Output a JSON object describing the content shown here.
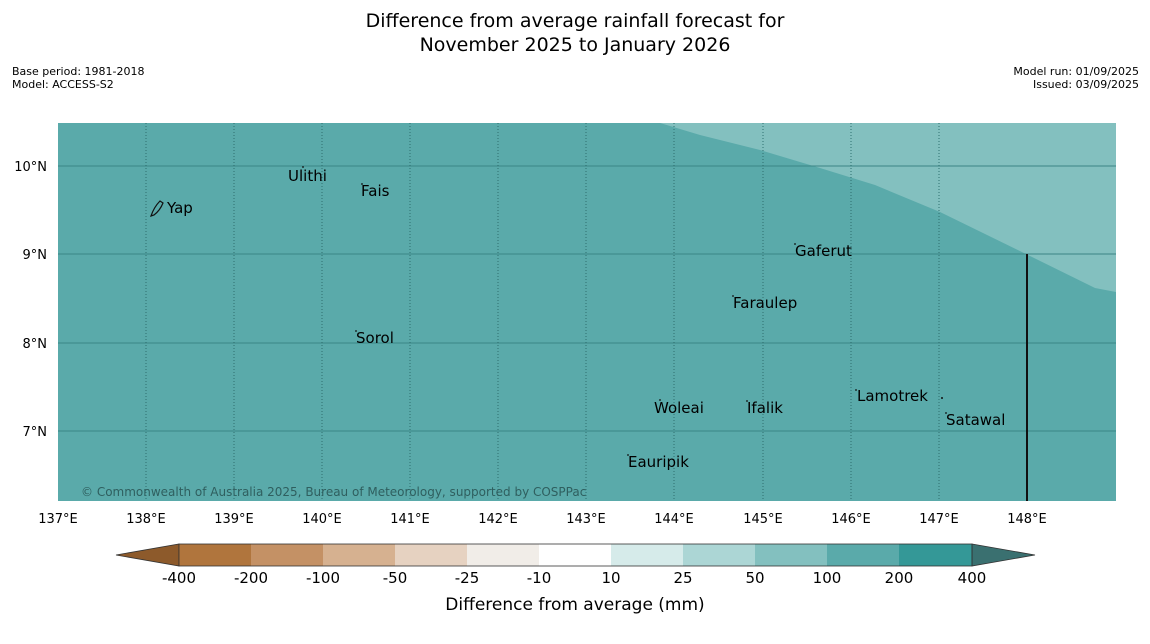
{
  "title_line1": "Difference from average rainfall forecast for",
  "title_line2": "November 2025 to January 2026",
  "base_period": "Base period: 1981-2018",
  "model": "Model: ACCESS-S2",
  "model_run": "Model run: 01/09/2025",
  "issued": "Issued: 03/09/2025",
  "credit": "© Commonwealth of Australia 2025, Bureau of Meteorology, supported by COSPPac",
  "map": {
    "lon_ticks": [
      "137°E",
      "138°E",
      "139°E",
      "140°E",
      "141°E",
      "142°E",
      "143°E",
      "144°E",
      "145°E",
      "146°E",
      "147°E",
      "148°E"
    ],
    "lat_ticks": [
      "10°N",
      "9°N",
      "8°N",
      "7°N"
    ],
    "places": {
      "ulithi": "Ulithi",
      "fais": "Fais",
      "yap": "Yap",
      "gaferut": "Gaferut",
      "faraulep": "Faraulep",
      "sorol": "Sorol",
      "woleai": "Woleai",
      "ifalik": "Ifalik",
      "lamotrek": "Lamotrek",
      "satawal": "Satawal",
      "eauripik": "Eauripik"
    },
    "colors": {
      "dominant": "#5aaaaa",
      "lighter": "#83c0bf"
    }
  },
  "colorbar": {
    "labels": [
      "-400",
      "-200",
      "-100",
      "-50",
      "-25",
      "-10",
      "10",
      "25",
      "50",
      "100",
      "200",
      "400"
    ],
    "colors": [
      "#8d5a2b",
      "#b0753d",
      "#c49165",
      "#d6b190",
      "#e6d2c1",
      "#f1ede8",
      "#ffffff",
      "#d6ebea",
      "#acd6d5",
      "#83c0bf",
      "#5aaaaa",
      "#349897",
      "#3a7070"
    ],
    "title": "Difference from average (mm)"
  }
}
